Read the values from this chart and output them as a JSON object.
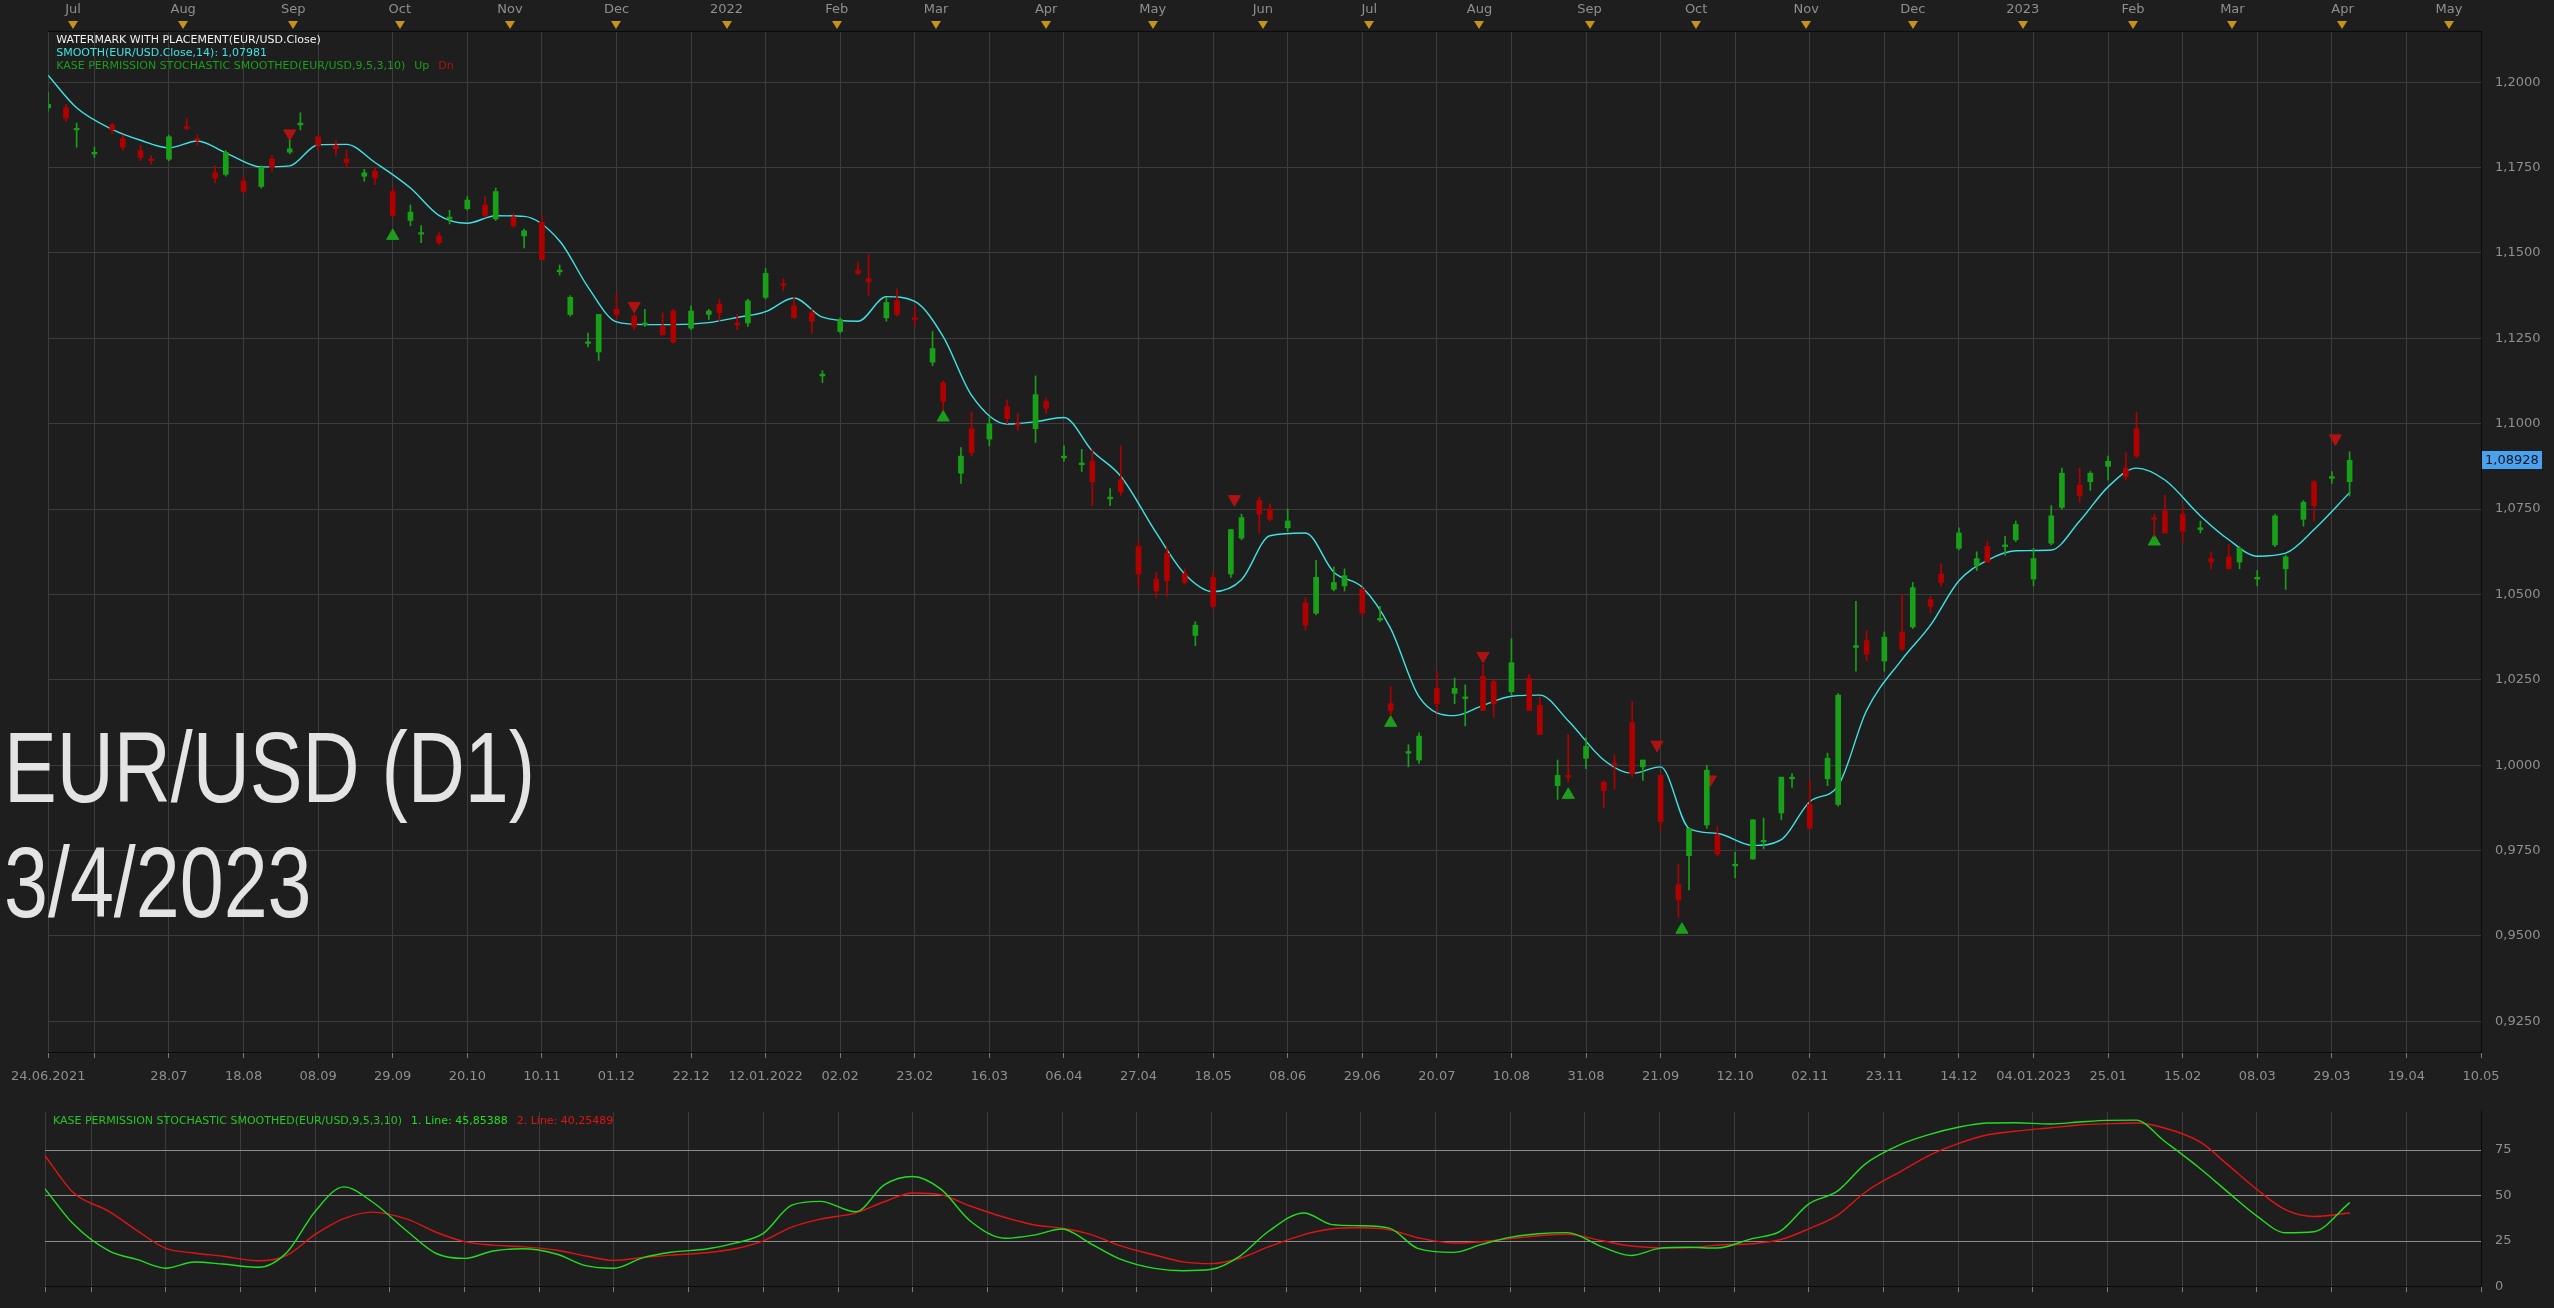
{
  "chart_data": [
    {
      "type": "candlestick",
      "annotations": [
        "WATERMARK WITH PLACEMENT(EUR/USD.Close)",
        "KASE PERMISSION STOCHASTIC SMOOTHED(EUR/USD,9,5,3,10)",
        "EUR/USD (D1)",
        "3/4/2023",
        "1,08928"
      ],
      "x": [
        "2021-06-24",
        "2021-06-29",
        "2021-07-02",
        "2021-07-07",
        "2021-07-12",
        "2021-07-15",
        "2021-07-20",
        "2021-07-23",
        "2021-07-28",
        "2021-08-02",
        "2021-08-05",
        "2021-08-10",
        "2021-08-13",
        "2021-08-18",
        "2021-08-23",
        "2021-08-26",
        "2021-08-31",
        "2021-09-03",
        "2021-09-08",
        "2021-09-13",
        "2021-09-16",
        "2021-09-21",
        "2021-09-24",
        "2021-09-29",
        "2021-10-04",
        "2021-10-07",
        "2021-10-12",
        "2021-10-15",
        "2021-10-20",
        "2021-10-25",
        "2021-10-28",
        "2021-11-02",
        "2021-11-05",
        "2021-11-10",
        "2021-11-15",
        "2021-11-18",
        "2021-11-23",
        "2021-11-26",
        "2021-12-01",
        "2021-12-06",
        "2021-12-09",
        "2021-12-14",
        "2021-12-17",
        "2021-12-22",
        "2021-12-27",
        "2021-12-30",
        "2022-01-04",
        "2022-01-07",
        "2022-01-12",
        "2022-01-17",
        "2022-01-20",
        "2022-01-25",
        "2022-01-28",
        "2022-02-02",
        "2022-02-07",
        "2022-02-10",
        "2022-02-15",
        "2022-02-18",
        "2022-02-23",
        "2022-02-28",
        "2022-03-03",
        "2022-03-08",
        "2022-03-11",
        "2022-03-16",
        "2022-03-21",
        "2022-03-24",
        "2022-03-29",
        "2022-04-01",
        "2022-04-06",
        "2022-04-11",
        "2022-04-14",
        "2022-04-19",
        "2022-04-22",
        "2022-04-27",
        "2022-05-02",
        "2022-05-05",
        "2022-05-10",
        "2022-05-13",
        "2022-05-18",
        "2022-05-23",
        "2022-05-26",
        "2022-05-31",
        "2022-06-03",
        "2022-06-08",
        "2022-06-13",
        "2022-06-16",
        "2022-06-21",
        "2022-06-24",
        "2022-06-29",
        "2022-07-04",
        "2022-07-07",
        "2022-07-12",
        "2022-07-15",
        "2022-07-20",
        "2022-07-25",
        "2022-07-28",
        "2022-08-02",
        "2022-08-05",
        "2022-08-10",
        "2022-08-15",
        "2022-08-18",
        "2022-08-23",
        "2022-08-26",
        "2022-08-31",
        "2022-09-05",
        "2022-09-08",
        "2022-09-13",
        "2022-09-16",
        "2022-09-21",
        "2022-09-26",
        "2022-09-29",
        "2022-10-04",
        "2022-10-07",
        "2022-10-12",
        "2022-10-17",
        "2022-10-20",
        "2022-10-25",
        "2022-10-28",
        "2022-11-02",
        "2022-11-07",
        "2022-11-10",
        "2022-11-15",
        "2022-11-18",
        "2022-11-23",
        "2022-11-28",
        "2022-12-01",
        "2022-12-06",
        "2022-12-09",
        "2022-12-14",
        "2022-12-19",
        "2022-12-22",
        "2022-12-27",
        "2022-12-30",
        "2023-01-04",
        "2023-01-09",
        "2023-01-12",
        "2023-01-17",
        "2023-01-20",
        "2023-01-25",
        "2023-01-30",
        "2023-02-02",
        "2023-02-07",
        "2023-02-10",
        "2023-02-15",
        "2023-02-20",
        "2023-02-23",
        "2023-02-28",
        "2023-03-03",
        "2023-03-08",
        "2023-03-13",
        "2023-03-16",
        "2023-03-21",
        "2023-03-24",
        "2023-03-29",
        "2023-04-03"
      ],
      "ohlc": [
        [
          1.1925,
          1.197,
          1.1915,
          1.1935
        ],
        [
          1.1925,
          1.1935,
          1.1885,
          1.1895
        ],
        [
          1.186,
          1.188,
          1.181,
          1.1865
        ],
        [
          1.179,
          1.181,
          1.178,
          1.1795
        ],
        [
          1.1875,
          1.188,
          1.185,
          1.186
        ],
        [
          1.1835,
          1.1845,
          1.18,
          1.181
        ],
        [
          1.18,
          1.1815,
          1.177,
          1.178
        ],
        [
          1.1775,
          1.1785,
          1.176,
          1.177
        ],
        [
          1.1775,
          1.1845,
          1.177,
          1.184
        ],
        [
          1.187,
          1.1895,
          1.186,
          1.1865
        ],
        [
          1.1835,
          1.1845,
          1.1815,
          1.183
        ],
        [
          1.1735,
          1.1755,
          1.1705,
          1.172
        ],
        [
          1.173,
          1.18,
          1.1725,
          1.1795
        ],
        [
          1.171,
          1.1725,
          1.1675,
          1.168
        ],
        [
          1.1695,
          1.1755,
          1.169,
          1.175
        ],
        [
          1.1775,
          1.1785,
          1.174,
          1.175
        ],
        [
          1.1795,
          1.183,
          1.179,
          1.1805
        ],
        [
          1.1875,
          1.191,
          1.186,
          1.188
        ],
        [
          1.184,
          1.1845,
          1.18,
          1.1815
        ],
        [
          1.1815,
          1.183,
          1.1785,
          1.1805
        ],
        [
          1.1775,
          1.18,
          1.175,
          1.1765
        ],
        [
          1.1725,
          1.1745,
          1.171,
          1.1735
        ],
        [
          1.174,
          1.175,
          1.17,
          1.172
        ],
        [
          1.168,
          1.169,
          1.1605,
          1.161
        ],
        [
          1.1595,
          1.164,
          1.158,
          1.162
        ],
        [
          1.1555,
          1.158,
          1.153,
          1.156
        ],
        [
          1.155,
          1.156,
          1.1525,
          1.153
        ],
        [
          1.16,
          1.1625,
          1.1585,
          1.1605
        ],
        [
          1.163,
          1.1665,
          1.1625,
          1.1655
        ],
        [
          1.164,
          1.1665,
          1.1605,
          1.161
        ],
        [
          1.16,
          1.169,
          1.1595,
          1.168
        ],
        [
          1.1605,
          1.1615,
          1.1575,
          1.158
        ],
        [
          1.155,
          1.157,
          1.1515,
          1.1565
        ],
        [
          1.159,
          1.161,
          1.148,
          1.148
        ],
        [
          1.1445,
          1.1465,
          1.1435,
          1.145
        ],
        [
          1.132,
          1.1375,
          1.1315,
          1.137
        ],
        [
          1.1235,
          1.1265,
          1.1225,
          1.124
        ],
        [
          1.121,
          1.132,
          1.1185,
          1.132
        ],
        [
          1.1335,
          1.138,
          1.1305,
          1.132
        ],
        [
          1.1315,
          1.132,
          1.1275,
          1.1285
        ],
        [
          1.129,
          1.1335,
          1.1285,
          1.1295
        ],
        [
          1.1285,
          1.1325,
          1.126,
          1.126
        ],
        [
          1.133,
          1.1335,
          1.1235,
          1.124
        ],
        [
          1.128,
          1.1345,
          1.1275,
          1.133
        ],
        [
          1.132,
          1.1335,
          1.1305,
          1.133
        ],
        [
          1.135,
          1.1365,
          1.13,
          1.1325
        ],
        [
          1.1295,
          1.132,
          1.1275,
          1.129
        ],
        [
          1.1295,
          1.1365,
          1.1285,
          1.136
        ],
        [
          1.137,
          1.1455,
          1.1365,
          1.144
        ],
        [
          1.141,
          1.1425,
          1.139,
          1.1405
        ],
        [
          1.1345,
          1.137,
          1.131,
          1.131
        ],
        [
          1.1325,
          1.1335,
          1.1265,
          1.13
        ],
        [
          1.114,
          1.1155,
          1.112,
          1.1145
        ],
        [
          1.127,
          1.131,
          1.1265,
          1.1305
        ],
        [
          1.145,
          1.1475,
          1.1435,
          1.144
        ],
        [
          1.1425,
          1.1495,
          1.1375,
          1.1415
        ],
        [
          1.131,
          1.137,
          1.13,
          1.1355
        ],
        [
          1.136,
          1.1395,
          1.1315,
          1.132
        ],
        [
          1.131,
          1.1345,
          1.1285,
          1.1305
        ],
        [
          1.118,
          1.127,
          1.117,
          1.122
        ],
        [
          1.112,
          1.1125,
          1.104,
          1.1065
        ],
        [
          1.0855,
          1.093,
          1.0825,
          1.0905
        ],
        [
          1.0985,
          1.1035,
          1.0905,
          1.0915
        ],
        [
          1.0955,
          1.102,
          1.0935,
          1.1
        ],
        [
          1.105,
          1.107,
          1.1,
          1.1015
        ],
        [
          1.1,
          1.103,
          1.098,
          1.0995
        ],
        [
          1.0985,
          1.114,
          1.0945,
          1.1085
        ],
        [
          1.1065,
          1.1075,
          1.103,
          1.1045
        ],
        [
          1.09,
          1.0935,
          1.089,
          1.0905
        ],
        [
          1.088,
          1.0925,
          1.086,
          1.0885
        ],
        [
          1.089,
          1.0925,
          1.076,
          1.083
        ],
        [
          1.078,
          1.081,
          1.076,
          1.0785
        ],
        [
          1.0835,
          1.0935,
          1.079,
          1.08
        ],
        [
          1.064,
          1.0655,
          1.0515,
          1.056
        ],
        [
          1.0545,
          1.0565,
          1.049,
          1.051
        ],
        [
          1.062,
          1.064,
          1.0495,
          1.054
        ],
        [
          1.056,
          1.0575,
          1.053,
          1.0535
        ],
        [
          1.038,
          1.042,
          1.035,
          1.041
        ],
        [
          1.055,
          1.0565,
          1.046,
          1.0465
        ],
        [
          1.056,
          1.069,
          1.055,
          1.069
        ],
        [
          1.0665,
          1.0735,
          1.066,
          1.0725
        ],
        [
          1.0775,
          1.0785,
          1.068,
          1.0735
        ],
        [
          1.075,
          1.0765,
          1.0715,
          1.072
        ],
        [
          1.0695,
          1.075,
          1.0685,
          1.0715
        ],
        [
          1.0475,
          1.049,
          1.0395,
          1.041
        ],
        [
          1.0445,
          1.06,
          1.044,
          1.055
        ],
        [
          1.0515,
          1.058,
          1.051,
          1.0535
        ],
        [
          1.0525,
          1.0575,
          1.051,
          1.0555
        ],
        [
          1.0515,
          1.052,
          1.044,
          1.0445
        ],
        [
          1.0425,
          1.0465,
          1.042,
          1.043
        ],
        [
          1.018,
          1.023,
          1.0145,
          1.016
        ],
        [
          1.0035,
          1.006,
          0.9995,
          1.004
        ],
        [
          1.0015,
          1.0095,
          1.0005,
          1.0085
        ],
        [
          1.0225,
          1.0275,
          1.0155,
          1.018
        ],
        [
          1.021,
          1.0255,
          1.018,
          1.0225
        ],
        [
          1.0195,
          1.0235,
          1.0115,
          1.02
        ],
        [
          1.026,
          1.0295,
          1.016,
          1.016
        ],
        [
          1.0245,
          1.025,
          1.014,
          1.018
        ],
        [
          1.0215,
          1.037,
          1.0205,
          1.03
        ],
        [
          1.0255,
          1.0265,
          1.016,
          1.016
        ],
        [
          1.0175,
          1.02,
          1.009,
          1.009
        ],
        [
          0.994,
          1.0015,
          0.99,
          0.997
        ],
        [
          0.997,
          1.009,
          0.995,
          0.9965
        ],
        [
          1.002,
          1.008,
          0.999,
          1.0055
        ],
        [
          0.995,
          0.9955,
          0.9875,
          0.9925
        ],
        [
          1.0005,
          1.003,
          0.993,
          1.0
        ],
        [
          1.0125,
          1.0187,
          0.9965,
          0.9975
        ],
        [
          0.9995,
          1.0015,
          0.9955,
          1.0015
        ],
        [
          0.997,
          0.9975,
          0.981,
          0.9835
        ],
        [
          0.965,
          0.971,
          0.9555,
          0.9605
        ],
        [
          0.9735,
          0.9815,
          0.9635,
          0.9815
        ],
        [
          0.9825,
          0.9999,
          0.9815,
          0.9985
        ],
        [
          0.9795,
          0.982,
          0.9735,
          0.974
        ],
        [
          0.9705,
          0.9745,
          0.967,
          0.971
        ],
        [
          0.9725,
          0.984,
          0.9725,
          0.984
        ],
        [
          0.9775,
          0.9845,
          0.9755,
          0.978
        ],
        [
          0.986,
          0.9965,
          0.984,
          0.9965
        ],
        [
          0.996,
          0.9975,
          0.9935,
          0.9965
        ],
        [
          0.9885,
          0.9955,
          0.9815,
          0.9815
        ],
        [
          0.996,
          1.0035,
          0.994,
          1.002
        ],
        [
          0.9885,
          1.021,
          0.988,
          1.0205
        ],
        [
          1.0345,
          1.048,
          1.0275,
          1.035
        ],
        [
          1.0365,
          1.0395,
          1.0305,
          1.0325
        ],
        [
          1.0305,
          1.039,
          1.0275,
          1.0375
        ],
        [
          1.039,
          1.05,
          1.0335,
          1.034
        ],
        [
          1.0405,
          1.0535,
          1.04,
          1.052
        ],
        [
          1.0485,
          1.0495,
          1.0445,
          1.0465
        ],
        [
          1.056,
          1.059,
          1.0525,
          1.0535
        ],
        [
          1.0635,
          1.0695,
          1.063,
          1.068
        ],
        [
          1.0585,
          1.0625,
          1.057,
          1.0605
        ],
        [
          1.064,
          1.0655,
          1.0595,
          1.0595
        ],
        [
          1.064,
          1.067,
          1.0615,
          1.0645
        ],
        [
          1.066,
          1.0715,
          1.0655,
          1.0705
        ],
        [
          1.0545,
          1.0635,
          1.0525,
          1.0605
        ],
        [
          1.065,
          1.076,
          1.0645,
          1.073
        ],
        [
          1.0755,
          1.087,
          1.075,
          1.0855
        ],
        [
          1.082,
          1.087,
          1.077,
          1.079
        ],
        [
          1.083,
          1.086,
          1.0805,
          1.0855
        ],
        [
          1.0875,
          1.0905,
          1.0835,
          1.089
        ],
        [
          1.087,
          1.0915,
          1.0835,
          1.0845
        ],
        [
          1.0985,
          1.1033,
          1.09,
          1.0905
        ],
        [
          1.0725,
          1.0735,
          1.067,
          1.072
        ],
        [
          1.0745,
          1.079,
          1.068,
          1.068
        ],
        [
          1.0735,
          1.076,
          1.0655,
          1.0685
        ],
        [
          1.069,
          1.0715,
          1.068,
          1.0695
        ],
        [
          1.0605,
          1.0625,
          1.0575,
          1.0595
        ],
        [
          1.061,
          1.0645,
          1.0575,
          1.0575
        ],
        [
          1.0595,
          1.064,
          1.0575,
          1.0635
        ],
        [
          1.0545,
          1.057,
          1.0525,
          1.055
        ],
        [
          1.0645,
          1.0735,
          1.064,
          1.073
        ],
        [
          1.0575,
          1.0615,
          1.0515,
          1.061
        ],
        [
          1.072,
          1.0775,
          1.07,
          1.077
        ],
        [
          1.083,
          1.0835,
          1.0715,
          1.076
        ],
        [
          1.084,
          1.086,
          1.0825,
          1.0845
        ],
        [
          1.083,
          1.0918,
          1.0788,
          1.08928
        ]
      ],
      "colors": [
        "#19a019",
        "#b00000",
        "#19a019",
        "#19a019",
        "#b00000",
        "#b00000",
        "#b00000",
        "#b00000",
        "#19a019",
        "#b00000",
        "#b00000",
        "#b00000",
        "#19a019",
        "#b00000",
        "#19a019",
        "#b00000",
        "#19a019",
        "#19a019",
        "#b00000",
        "#b00000",
        "#b00000",
        "#19a019",
        "#b00000",
        "#b00000",
        "#19a019",
        "#19a019",
        "#b00000",
        "#19a019",
        "#19a019",
        "#b00000",
        "#19a019",
        "#b00000",
        "#19a019",
        "#b00000",
        "#19a019",
        "#19a019",
        "#19a019",
        "#19a019",
        "#b00000",
        "#b00000",
        "#19a019",
        "#b00000",
        "#b00000",
        "#19a019",
        "#19a019",
        "#b00000",
        "#b00000",
        "#19a019",
        "#19a019",
        "#b00000",
        "#b00000",
        "#b00000",
        "#19a019",
        "#19a019",
        "#b00000",
        "#b00000",
        "#19a019",
        "#b00000",
        "#b00000",
        "#19a019",
        "#b00000",
        "#19a019",
        "#b00000",
        "#19a019",
        "#b00000",
        "#b00000",
        "#19a019",
        "#b00000",
        "#19a019",
        "#19a019",
        "#b00000",
        "#19a019",
        "#b00000",
        "#b00000",
        "#b00000",
        "#b00000",
        "#b00000",
        "#19a019",
        "#b00000",
        "#19a019",
        "#19a019",
        "#b00000",
        "#b00000",
        "#19a019",
        "#b00000",
        "#19a019",
        "#19a019",
        "#19a019",
        "#b00000",
        "#19a019",
        "#b00000",
        "#19a019",
        "#19a019",
        "#b00000",
        "#19a019",
        "#19a019",
        "#b00000",
        "#b00000",
        "#19a019",
        "#b00000",
        "#b00000",
        "#19a019",
        "#b00000",
        "#19a019",
        "#b00000",
        "#b00000",
        "#b00000",
        "#19a019",
        "#b00000",
        "#b00000",
        "#19a019",
        "#19a019",
        "#b00000",
        "#19a019",
        "#19a019",
        "#19a019",
        "#19a019",
        "#19a019",
        "#b00000",
        "#19a019",
        "#19a019",
        "#19a019",
        "#b00000",
        "#19a019",
        "#b00000",
        "#19a019",
        "#b00000",
        "#b00000",
        "#19a019",
        "#19a019",
        "#b00000",
        "#19a019",
        "#19a019",
        "#19a019",
        "#19a019",
        "#19a019",
        "#b00000",
        "#19a019",
        "#19a019",
        "#b00000",
        "#b00000",
        "#b00000",
        "#b00000",
        "#b00000",
        "#19a019",
        "#b00000",
        "#b00000",
        "#19a019",
        "#19a019",
        "#19a019",
        "#19a019",
        "#19a019",
        "#b00000",
        "#19a019",
        "#19a019"
      ],
      "series": [
        {
          "name": "SMOOTH(EUR/USD.Close,14): 1,07981",
          "type": "line",
          "color": "#3fe3e3",
          "x": [
            "2021-06-24",
            "2021-07-02",
            "2021-07-12",
            "2021-07-20",
            "2021-07-28",
            "2021-08-05",
            "2021-08-13",
            "2021-08-23",
            "2021-08-31",
            "2021-09-08",
            "2021-09-16",
            "2021-09-24",
            "2021-10-04",
            "2021-10-12",
            "2021-10-20",
            "2021-10-28",
            "2021-11-05",
            "2021-11-15",
            "2021-11-23",
            "2021-12-01",
            "2021-12-09",
            "2021-12-17",
            "2021-12-27",
            "2022-01-04",
            "2022-01-12",
            "2022-01-20",
            "2022-01-28",
            "2022-02-07",
            "2022-02-15",
            "2022-02-23",
            "2022-03-03",
            "2022-03-11",
            "2022-03-21",
            "2022-03-29",
            "2022-04-06",
            "2022-04-14",
            "2022-04-22",
            "2022-05-02",
            "2022-05-10",
            "2022-05-18",
            "2022-05-26",
            "2022-06-03",
            "2022-06-13",
            "2022-06-21",
            "2022-06-29",
            "2022-07-07",
            "2022-07-15",
            "2022-07-25",
            "2022-08-02",
            "2022-08-10",
            "2022-08-18",
            "2022-08-26",
            "2022-09-05",
            "2022-09-13",
            "2022-09-21",
            "2022-09-29",
            "2022-10-07",
            "2022-10-17",
            "2022-10-25",
            "2022-11-02",
            "2022-11-10",
            "2022-11-18",
            "2022-11-28",
            "2022-12-06",
            "2022-12-14",
            "2022-12-22",
            "2022-12-30",
            "2023-01-09",
            "2023-01-17",
            "2023-01-25",
            "2023-02-02",
            "2023-02-10",
            "2023-02-20",
            "2023-02-28",
            "2023-03-08",
            "2023-03-16",
            "2023-03-24",
            "2023-04-03"
          ],
          "values": [
            1.202,
            1.1925,
            1.1862,
            1.183,
            1.1808,
            1.1828,
            1.1793,
            1.1752,
            1.1755,
            1.1817,
            1.1818,
            1.1765,
            1.169,
            1.161,
            1.1587,
            1.1609,
            1.1607,
            1.1535,
            1.14,
            1.1298,
            1.129,
            1.129,
            1.1296,
            1.1311,
            1.1328,
            1.1368,
            1.1312,
            1.13,
            1.1372,
            1.1358,
            1.1255,
            1.1083,
            1.0999,
            1.1006,
            1.1018,
            1.092,
            1.0846,
            1.068,
            1.056,
            1.0508,
            1.0543,
            1.0672,
            1.068,
            1.0565,
            1.0521,
            1.04,
            1.02,
            1.0145,
            1.0175,
            1.0202,
            1.0205,
            1.013,
            1.0015,
            0.9976,
            0.9995,
            0.9815,
            0.98,
            0.9765,
            0.9782,
            0.9893,
            0.994,
            1.016,
            1.031,
            1.041,
            1.054,
            1.06,
            1.0628,
            1.063,
            1.0715,
            1.0815,
            1.087,
            1.0835,
            1.073,
            1.066,
            1.0612,
            1.0621,
            1.069,
            1.07981
          ]
        },
        {
          "name": "Up",
          "type": "scatter",
          "color": "#1c9e1c",
          "marker": "triangle",
          "x": [
            "2021-09-29",
            "2022-03-03",
            "2022-07-07",
            "2022-08-26",
            "2022-09-27",
            "2023-02-07"
          ],
          "values": [
            1.155,
            1.1018,
            1.0124,
            0.9913,
            0.9518,
            1.0655
          ]
        },
        {
          "name": "Dn",
          "type": "scatter",
          "color": "#b01212",
          "marker": "triangle",
          "x": [
            "2021-08-31",
            "2021-12-06",
            "2022-05-24",
            "2022-08-02",
            "2022-09-20",
            "2022-10-05",
            "2023-03-30"
          ],
          "values": [
            1.185,
            1.1345,
            1.0779,
            1.032,
            1.006,
            0.9958,
            1.0957
          ]
        }
      ],
      "xlim": [
        "2021-06-24",
        "2023-05-10"
      ],
      "xticks": [
        {
          "value": "2021-06-24",
          "label": "24.06.2021"
        },
        {
          "value": "2021-07-07",
          "label": null
        },
        {
          "value": "2021-07-28",
          "label": "28.07"
        },
        {
          "value": "2021-08-18",
          "label": "18.08"
        },
        {
          "value": "2021-09-08",
          "label": "08.09"
        },
        {
          "value": "2021-09-29",
          "label": "29.09"
        },
        {
          "value": "2021-10-20",
          "label": "20.10"
        },
        {
          "value": "2021-11-10",
          "label": "10.11"
        },
        {
          "value": "2021-12-01",
          "label": "01.12"
        },
        {
          "value": "2021-12-22",
          "label": "22.12"
        },
        {
          "value": "2022-01-12",
          "label": "12.01.2022"
        },
        {
          "value": "2022-02-02",
          "label": "02.02"
        },
        {
          "value": "2022-02-23",
          "label": "23.02"
        },
        {
          "value": "2022-03-16",
          "label": "16.03"
        },
        {
          "value": "2022-04-06",
          "label": "06.04"
        },
        {
          "value": "2022-04-27",
          "label": "27.04"
        },
        {
          "value": "2022-05-18",
          "label": "18.05"
        },
        {
          "value": "2022-06-08",
          "label": "08.06"
        },
        {
          "value": "2022-06-29",
          "label": "29.06"
        },
        {
          "value": "2022-07-20",
          "label": "20.07"
        },
        {
          "value": "2022-08-10",
          "label": "10.08"
        },
        {
          "value": "2022-08-31",
          "label": "31.08"
        },
        {
          "value": "2022-09-21",
          "label": "21.09"
        },
        {
          "value": "2022-10-12",
          "label": "12.10"
        },
        {
          "value": "2022-11-02",
          "label": "02.11"
        },
        {
          "value": "2022-11-23",
          "label": "23.11"
        },
        {
          "value": "2022-12-14",
          "label": "14.12"
        },
        {
          "value": "2023-01-04",
          "label": "04.01.2023"
        },
        {
          "value": "2023-01-25",
          "label": "25.01"
        },
        {
          "value": "2023-02-15",
          "label": "15.02"
        },
        {
          "value": "2023-03-08",
          "label": "08.03"
        },
        {
          "value": "2023-03-29",
          "label": "29.03"
        },
        {
          "value": "2023-04-19",
          "label": "19.04"
        },
        {
          "value": "2023-05-10",
          "label": "10.05"
        }
      ],
      "x2lim": [
        "2021-06-24",
        "2023-05-10"
      ],
      "x2ticks": [
        {
          "value": "2021-07-01",
          "label": "Jul"
        },
        {
          "value": "2021-08-01",
          "label": "Aug"
        },
        {
          "value": "2021-09-01",
          "label": "Sep"
        },
        {
          "value": "2021-10-01",
          "label": "Oct"
        },
        {
          "value": "2021-11-01",
          "label": "Nov"
        },
        {
          "value": "2021-12-01",
          "label": "Dec"
        },
        {
          "value": "2022-01-01",
          "label": "2022"
        },
        {
          "value": "2022-02-01",
          "label": "Feb"
        },
        {
          "value": "2022-03-01",
          "label": "Mar"
        },
        {
          "value": "2022-04-01",
          "label": "Apr"
        },
        {
          "value": "2022-05-01",
          "label": "May"
        },
        {
          "value": "2022-06-01",
          "label": "Jun"
        },
        {
          "value": "2022-07-01",
          "label": "Jul"
        },
        {
          "value": "2022-08-01",
          "label": "Aug"
        },
        {
          "value": "2022-09-01",
          "label": "Sep"
        },
        {
          "value": "2022-10-01",
          "label": "Oct"
        },
        {
          "value": "2022-11-01",
          "label": "Nov"
        },
        {
          "value": "2022-12-01",
          "label": "Dec"
        },
        {
          "value": "2023-01-01",
          "label": "2023"
        },
        {
          "value": "2023-02-01",
          "label": "Feb"
        },
        {
          "value": "2023-03-01",
          "label": "Mar"
        },
        {
          "value": "2023-04-01",
          "label": "Apr"
        },
        {
          "value": "2023-05-01",
          "label": "May"
        }
      ],
      "ylim": [
        0.916,
        1.215
      ],
      "yticks": [
        {
          "value": 0.925,
          "label": "0,9250"
        },
        {
          "value": 0.95,
          "label": "0,9500"
        },
        {
          "value": 0.975,
          "label": "0,9750"
        },
        {
          "value": 1.0,
          "label": "1,0000"
        },
        {
          "value": 1.025,
          "label": "1,0250"
        },
        {
          "value": 1.05,
          "label": "1,0500"
        },
        {
          "value": 1.075,
          "label": "1,0750"
        },
        {
          "value": 1.1,
          "label": "1,1000"
        },
        {
          "value": 1.125,
          "label": "1,1250"
        },
        {
          "value": 1.15,
          "label": "1,1500"
        },
        {
          "value": 1.175,
          "label": "1,1750"
        },
        {
          "value": 1.2,
          "label": "1,2000"
        }
      ],
      "grid": true,
      "legend": "top left"
    },
    {
      "type": "line",
      "title": "KASE PERMISSION STOCHASTIC SMOOTHED(EUR/USD,9,5,3,10)",
      "x": [
        "2021-06-24",
        "2021-07-02",
        "2021-07-12",
        "2021-07-20",
        "2021-07-28",
        "2021-08-05",
        "2021-08-13",
        "2021-08-23",
        "2021-08-31",
        "2021-09-08",
        "2021-09-16",
        "2021-09-24",
        "2021-10-04",
        "2021-10-12",
        "2021-10-20",
        "2021-10-28",
        "2021-11-05",
        "2021-11-15",
        "2021-11-23",
        "2021-12-01",
        "2021-12-09",
        "2021-12-17",
        "2021-12-27",
        "2022-01-04",
        "2022-01-12",
        "2022-01-20",
        "2022-01-28",
        "2022-02-07",
        "2022-02-15",
        "2022-02-23",
        "2022-03-03",
        "2022-03-11",
        "2022-03-21",
        "2022-03-29",
        "2022-04-06",
        "2022-04-14",
        "2022-04-22",
        "2022-05-02",
        "2022-05-10",
        "2022-05-18",
        "2022-05-26",
        "2022-06-03",
        "2022-06-13",
        "2022-06-21",
        "2022-06-29",
        "2022-07-07",
        "2022-07-15",
        "2022-07-25",
        "2022-08-02",
        "2022-08-10",
        "2022-08-18",
        "2022-08-26",
        "2022-09-05",
        "2022-09-13",
        "2022-09-21",
        "2022-09-29",
        "2022-10-07",
        "2022-10-17",
        "2022-10-25",
        "2022-11-02",
        "2022-11-10",
        "2022-11-18",
        "2022-11-28",
        "2022-12-06",
        "2022-12-14",
        "2022-12-22",
        "2022-12-30",
        "2023-01-09",
        "2023-01-17",
        "2023-01-25",
        "2023-02-02",
        "2023-02-10",
        "2023-02-20",
        "2023-02-28",
        "2023-03-08",
        "2023-03-16",
        "2023-03-24",
        "2023-04-03"
      ],
      "series": [
        {
          "name": "1. Line: 45,85388",
          "color": "#22dd22",
          "values": [
            53.6,
            34.2,
            19.4,
            14.6,
            9.9,
            13.3,
            12.2,
            10.4,
            18.6,
            41.3,
            54.7,
            46.5,
            30,
            18,
            15.3,
            19.4,
            20.6,
            17.6,
            11.3,
            9.9,
            15.6,
            18.7,
            20.5,
            23.7,
            29.1,
            44.6,
            46.7,
            41,
            55.8,
            60.4,
            53.3,
            36.2,
            26.4,
            28.1,
            31.5,
            23.5,
            15.2,
            9.8,
            8.5,
            9.3,
            16.6,
            30.1,
            40.3,
            33.9,
            33.3,
            32,
            20.8,
            18.6,
            23,
            26.9,
            28.9,
            29.5,
            21.5,
            16.9,
            20.8,
            21.4,
            21,
            26.2,
            30.3,
            45.3,
            52.3,
            67.5,
            78.2,
            83.6,
            87.5,
            89.8,
            90,
            89.3,
            90.4,
            91.3,
            91.4,
            79.8,
            64.8,
            51.5,
            38.6,
            29.4,
            30,
            45.85388
          ]
        },
        {
          "name": "2. Line: 40,25489",
          "color": "#e01414",
          "values": [
            71.8,
            51.4,
            41.2,
            30.5,
            20.8,
            18.3,
            16.5,
            14,
            17,
            28.5,
            37.2,
            40.8,
            36.8,
            29.7,
            24.5,
            22.6,
            21.8,
            19.8,
            16.6,
            14.2,
            15.8,
            17.1,
            18.4,
            20.6,
            25,
            32.5,
            36.9,
            40.4,
            46.5,
            51.3,
            50.3,
            44.3,
            37.8,
            33.8,
            31.9,
            28.5,
            22.5,
            17.2,
            13.4,
            12.4,
            15.4,
            21.6,
            28.4,
            31.6,
            32.2,
            31.1,
            26.7,
            23.8,
            24.5,
            26.2,
            27.8,
            28.6,
            25,
            22.1,
            21.2,
            21.1,
            22.6,
            23.4,
            25.6,
            31.6,
            39,
            52,
            63.4,
            72.2,
            78.5,
            83.2,
            85.3,
            87.2,
            88.7,
            89.4,
            89.8,
            87.1,
            79.4,
            66.5,
            53.2,
            42.1,
            38.4,
            40.25489
          ]
        }
      ],
      "xlim": [
        "2021-06-24",
        "2023-05-10"
      ],
      "xticks": [
        "2021-06-24",
        "2021-07-07",
        "2021-07-28",
        "2021-08-18",
        "2021-09-08",
        "2021-09-29",
        "2021-10-20",
        "2021-11-10",
        "2021-12-01",
        "2021-12-22",
        "2022-01-12",
        "2022-02-02",
        "2022-02-23",
        "2022-03-16",
        "2022-04-06",
        "2022-04-27",
        "2022-05-18",
        "2022-06-08",
        "2022-06-29",
        "2022-07-20",
        "2022-08-10",
        "2022-08-31",
        "2022-09-21",
        "2022-10-12",
        "2022-11-02",
        "2022-11-23",
        "2022-12-14",
        "2023-01-04",
        "2023-01-25",
        "2023-02-15",
        "2023-03-08",
        "2023-03-29",
        "2023-04-19",
        "2023-05-10"
      ],
      "ylim": [
        0,
        96
      ],
      "yticks": [
        0,
        25,
        50,
        75
      ],
      "ref_lines": [
        {
          "axis": "y",
          "value": 25,
          "color": "#8e8e8e"
        },
        {
          "axis": "y",
          "value": 50,
          "color": "#8e8e8e"
        },
        {
          "axis": "y",
          "value": 75,
          "color": "#8e8e8e"
        }
      ],
      "grid": "x",
      "tick_labels": "y",
      "legend": "top left"
    }
  ]
}
